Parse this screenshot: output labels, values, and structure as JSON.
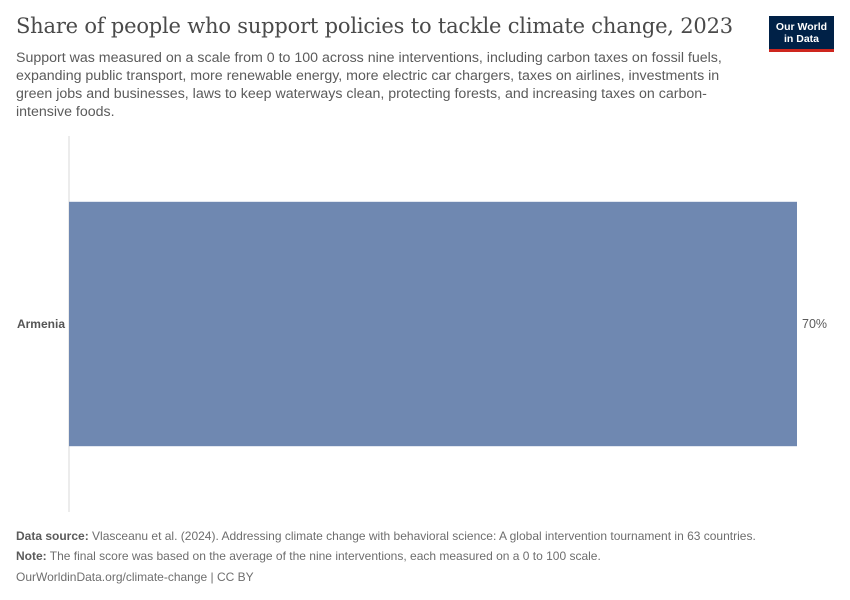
{
  "header": {
    "title": "Share of people who support policies to tackle climate change, 2023",
    "subtitle": "Support was measured on a scale from 0 to 100 across nine interventions, including carbon taxes on fossil fuels, expanding public transport, more renewable energy, more electric car chargers, taxes on airlines, investments in green jobs and businesses, laws to keep waterways clean, protecting forests, and increasing taxes on carbon-intensive foods.",
    "logo_line1": "Our World",
    "logo_line2": "in Data"
  },
  "colors": {
    "bar": "#6f88b1",
    "axis": "#d9d9d9",
    "logo_bg": "#002147",
    "logo_accent": "#ce261e"
  },
  "chart_data": {
    "type": "bar",
    "orientation": "horizontal",
    "categories": [
      "Armenia"
    ],
    "values": [
      70
    ],
    "value_labels": [
      "70%"
    ],
    "unit": "%",
    "xlim": [
      0,
      70
    ]
  },
  "footer": {
    "source_label": "Data source:",
    "source_text": "Vlasceanu et al. (2024). Addressing climate change with behavioral science: A global intervention tournament in 63 countries.",
    "note_label": "Note:",
    "note_text": "The final score was based on the average of the nine interventions, each measured on a 0 to 100 scale.",
    "link_text": "OurWorldinData.org/climate-change",
    "license_text": " | CC BY"
  }
}
